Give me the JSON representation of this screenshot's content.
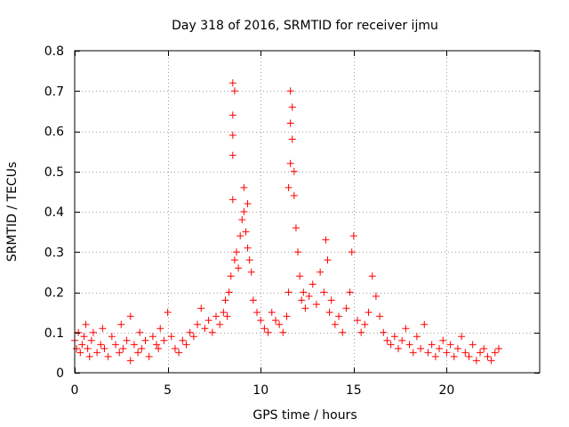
{
  "chart_data": {
    "type": "scatter",
    "title": "Day 318 of 2016, SRMTID for receiver ijmu",
    "xlabel": "GPS time / hours",
    "ylabel": "SRMTID / TECUs",
    "xlim": [
      0,
      25
    ],
    "ylim": [
      0,
      0.8
    ],
    "xticks": [
      0,
      5,
      10,
      15,
      20
    ],
    "xtick_labels": [
      "0",
      "5",
      "10",
      "15",
      "20"
    ],
    "yticks": [
      0,
      0.1,
      0.2,
      0.3,
      0.4,
      0.5,
      0.6,
      0.7,
      0.8
    ],
    "ytick_labels": [
      "0",
      "0.1",
      "0.2",
      "0.3",
      "0.4",
      "0.5",
      "0.6",
      "0.7",
      "0.8"
    ],
    "grid": true,
    "marker": "plus",
    "series": [
      {
        "name": "SRMTID",
        "color": "#ff0000",
        "x": [
          0.0,
          0.1,
          0.2,
          0.3,
          0.4,
          0.5,
          0.6,
          0.7,
          0.8,
          0.9,
          1.0,
          1.2,
          1.4,
          1.5,
          1.6,
          1.8,
          2.0,
          2.2,
          2.4,
          2.5,
          2.6,
          2.8,
          3.0,
          3.0,
          3.2,
          3.4,
          3.5,
          3.6,
          3.8,
          4.0,
          4.2,
          4.4,
          4.5,
          4.6,
          4.8,
          5.0,
          5.2,
          5.4,
          5.6,
          5.8,
          6.0,
          6.2,
          6.4,
          6.6,
          6.8,
          7.0,
          7.2,
          7.4,
          7.6,
          7.8,
          8.0,
          8.1,
          8.2,
          8.3,
          8.4,
          8.5,
          8.5,
          8.5,
          8.5,
          8.5,
          8.6,
          8.6,
          8.7,
          8.8,
          8.9,
          9.0,
          9.1,
          9.1,
          9.2,
          9.3,
          9.3,
          9.4,
          9.5,
          9.6,
          9.8,
          10.0,
          10.2,
          10.4,
          10.6,
          10.8,
          11.0,
          11.2,
          11.4,
          11.5,
          11.5,
          11.6,
          11.6,
          11.6,
          11.7,
          11.7,
          11.8,
          11.8,
          11.9,
          12.0,
          12.1,
          12.2,
          12.3,
          12.4,
          12.6,
          12.8,
          13.0,
          13.2,
          13.4,
          13.5,
          13.6,
          13.7,
          13.8,
          14.0,
          14.2,
          14.4,
          14.6,
          14.8,
          14.9,
          15.0,
          15.2,
          15.4,
          15.6,
          15.8,
          16.0,
          16.2,
          16.4,
          16.6,
          16.8,
          17.0,
          17.2,
          17.4,
          17.6,
          17.8,
          18.0,
          18.2,
          18.4,
          18.6,
          18.8,
          19.0,
          19.2,
          19.4,
          19.6,
          19.8,
          20.0,
          20.2,
          20.4,
          20.6,
          20.8,
          21.0,
          21.2,
          21.4,
          21.6,
          21.8,
          22.0,
          22.2,
          22.4,
          22.6,
          22.8
        ],
        "y": [
          0.08,
          0.06,
          0.1,
          0.05,
          0.07,
          0.09,
          0.12,
          0.06,
          0.04,
          0.08,
          0.1,
          0.05,
          0.07,
          0.11,
          0.06,
          0.04,
          0.09,
          0.07,
          0.05,
          0.12,
          0.06,
          0.08,
          0.03,
          0.14,
          0.07,
          0.05,
          0.1,
          0.06,
          0.08,
          0.04,
          0.09,
          0.07,
          0.06,
          0.11,
          0.08,
          0.15,
          0.09,
          0.06,
          0.05,
          0.08,
          0.07,
          0.1,
          0.09,
          0.12,
          0.16,
          0.11,
          0.13,
          0.1,
          0.14,
          0.12,
          0.15,
          0.18,
          0.14,
          0.2,
          0.24,
          0.43,
          0.54,
          0.59,
          0.64,
          0.72,
          0.7,
          0.28,
          0.3,
          0.26,
          0.34,
          0.38,
          0.46,
          0.4,
          0.35,
          0.31,
          0.42,
          0.28,
          0.25,
          0.18,
          0.15,
          0.13,
          0.11,
          0.1,
          0.15,
          0.13,
          0.12,
          0.1,
          0.14,
          0.2,
          0.46,
          0.52,
          0.62,
          0.7,
          0.66,
          0.58,
          0.5,
          0.44,
          0.36,
          0.3,
          0.24,
          0.18,
          0.2,
          0.16,
          0.19,
          0.22,
          0.17,
          0.25,
          0.2,
          0.33,
          0.28,
          0.15,
          0.18,
          0.12,
          0.14,
          0.1,
          0.16,
          0.2,
          0.3,
          0.34,
          0.13,
          0.1,
          0.12,
          0.15,
          0.24,
          0.19,
          0.14,
          0.1,
          0.08,
          0.07,
          0.09,
          0.06,
          0.08,
          0.11,
          0.07,
          0.05,
          0.09,
          0.06,
          0.12,
          0.05,
          0.07,
          0.04,
          0.06,
          0.08,
          0.05,
          0.07,
          0.04,
          0.06,
          0.09,
          0.05,
          0.04,
          0.07,
          0.03,
          0.05,
          0.06,
          0.04,
          0.03,
          0.05,
          0.06
        ]
      }
    ]
  }
}
